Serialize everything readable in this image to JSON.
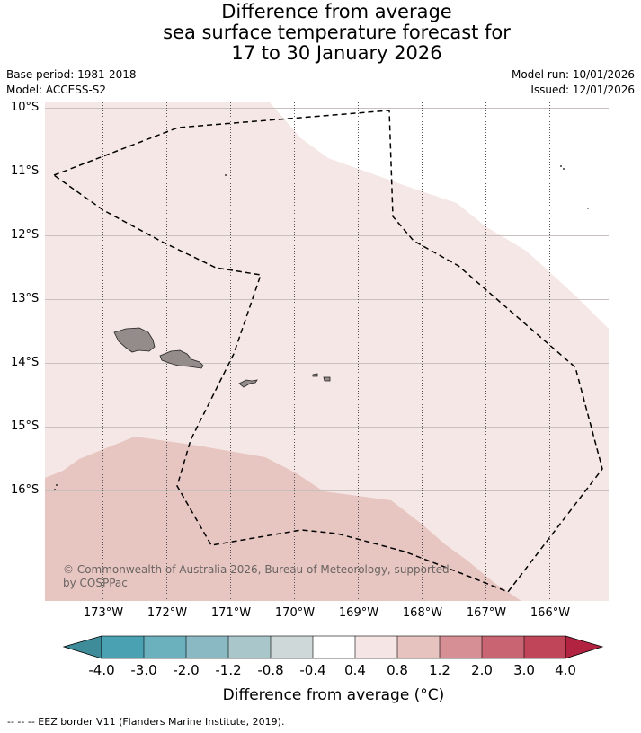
{
  "title_lines": [
    "Difference from average",
    "sea surface temperature forecast for",
    "17 to 30 January 2026"
  ],
  "left_meta": [
    "Base period: 1981-2018",
    "Model: ACCESS-S2"
  ],
  "right_meta": [
    "Model run: 10/01/2026",
    "Issued: 12/01/2026"
  ],
  "map": {
    "lat_labels": [
      "10°S",
      "11°S",
      "12°S",
      "13°S",
      "14°S",
      "15°S",
      "16°S"
    ],
    "lon_labels": [
      "173°W",
      "172°W",
      "171°W",
      "170°W",
      "169°W",
      "168°W",
      "167°W",
      "166°W"
    ],
    "copyright": [
      "© Commonwealth of Australia 2026, Bureau of Meteorology, supported",
      "by COSPPac"
    ],
    "colors": {
      "anomaly_0_4_to_0_8": "#f5e7e5",
      "anomaly_0_8_to_1_2": "#e7c6c2",
      "land": "#938c8a",
      "eez_border": "#000000"
    }
  },
  "colorbar": {
    "tick_labels": [
      "-4.0",
      "-3.0",
      "-2.0",
      "-1.2",
      "-0.8",
      "-0.4",
      "0.4",
      "0.8",
      "1.2",
      "2.0",
      "3.0",
      "4.0"
    ],
    "colors": [
      "#3e8b99",
      "#4aa1b1",
      "#6ab0bd",
      "#8ab9c4",
      "#a9c6cb",
      "#cfd8d9",
      "#ffffff",
      "#f5e6e5",
      "#e7c3bf",
      "#d78f96",
      "#c96473",
      "#c14559",
      "#b12340"
    ],
    "title": "Difference from average (°C)"
  },
  "footnote": "--  --  -- EEZ border V11 (Flanders Marine Institute, 2019)."
}
